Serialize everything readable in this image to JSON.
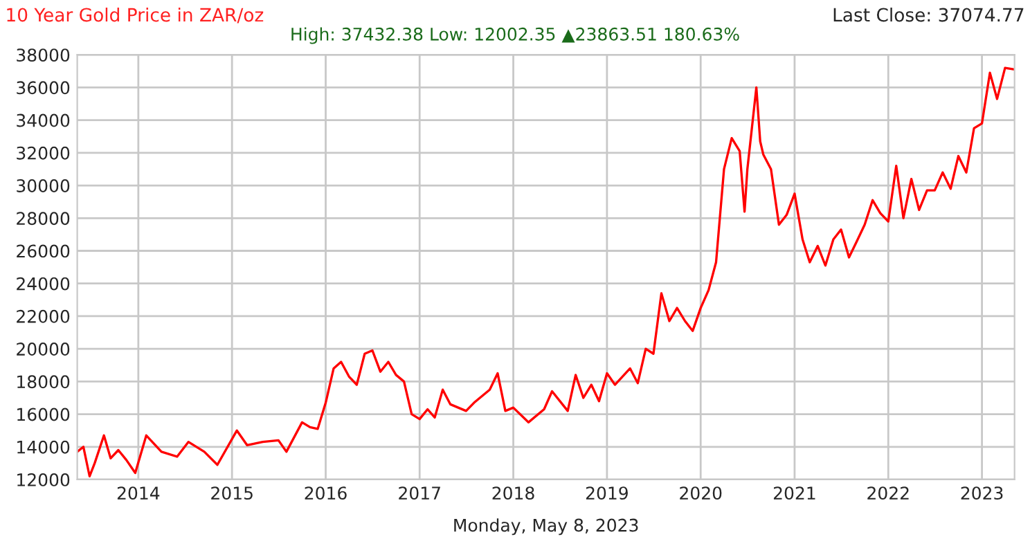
{
  "chart_data": {
    "type": "line",
    "title": "10 Year Gold Price in ZAR/oz",
    "subtitle": "High: 37432.38 Low: 12002.35 ▲23863.51 180.63%",
    "xlabel": "Monday, May 8, 2023",
    "annotations": [
      "Last Close: 37074.77"
    ],
    "x": [
      "2013-05-08",
      "2013-06-01",
      "2013-06-25",
      "2013-07-15",
      "2013-08-20",
      "2013-09-15",
      "2013-10-15",
      "2013-11-15",
      "2013-12-20",
      "2014-02-01",
      "2014-04-01",
      "2014-06-01",
      "2014-07-15",
      "2014-09-15",
      "2014-11-05",
      "2015-01-20",
      "2015-03-01",
      "2015-05-01",
      "2015-07-01",
      "2015-08-01",
      "2015-10-01",
      "2015-11-01",
      "2015-12-01",
      "2016-01-01",
      "2016-02-01",
      "2016-03-01",
      "2016-04-01",
      "2016-05-01",
      "2016-06-01",
      "2016-07-01",
      "2016-08-01",
      "2016-09-01",
      "2016-10-01",
      "2016-11-01",
      "2016-12-01",
      "2017-01-01",
      "2017-02-01",
      "2017-03-01",
      "2017-04-01",
      "2017-05-01",
      "2017-07-01",
      "2017-08-01",
      "2017-10-01",
      "2017-11-01",
      "2017-12-01",
      "2018-01-01",
      "2018-03-01",
      "2018-05-01",
      "2018-06-01",
      "2018-08-01",
      "2018-09-01",
      "2018-10-01",
      "2018-11-01",
      "2018-12-01",
      "2019-01-01",
      "2019-02-01",
      "2019-04-01",
      "2019-05-01",
      "2019-06-01",
      "2019-07-01",
      "2019-08-01",
      "2019-09-01",
      "2019-10-01",
      "2019-11-01",
      "2019-12-01",
      "2020-01-01",
      "2020-02-01",
      "2020-03-01",
      "2020-04-01",
      "2020-05-01",
      "2020-06-01",
      "2020-06-20",
      "2020-07-01",
      "2020-08-05",
      "2020-08-20",
      "2020-09-01",
      "2020-10-01",
      "2020-11-01",
      "2020-12-01",
      "2021-01-01",
      "2021-02-01",
      "2021-03-01",
      "2021-04-01",
      "2021-05-01",
      "2021-06-01",
      "2021-07-01",
      "2021-08-01",
      "2021-09-01",
      "2021-10-01",
      "2021-11-01",
      "2021-12-01",
      "2022-01-01",
      "2022-02-01",
      "2022-03-01",
      "2022-04-01",
      "2022-05-01",
      "2022-06-01",
      "2022-07-01",
      "2022-08-01",
      "2022-09-01",
      "2022-10-01",
      "2022-11-01",
      "2022-12-01",
      "2023-01-01",
      "2023-02-01",
      "2023-03-01",
      "2023-04-01",
      "2023-05-08"
    ],
    "series": [
      {
        "color": "#ff0000",
        "values": [
          13700,
          14000,
          12200,
          13000,
          14700,
          13300,
          13800,
          13200,
          12400,
          14700,
          13700,
          13400,
          14300,
          13700,
          12900,
          15000,
          14100,
          14300,
          14400,
          13700,
          15500,
          15200,
          15100,
          16700,
          18800,
          19200,
          18300,
          17800,
          19700,
          19900,
          18600,
          19200,
          18400,
          18000,
          16000,
          15700,
          16300,
          15800,
          17500,
          16600,
          16200,
          16700,
          17500,
          18500,
          16200,
          16400,
          15500,
          16300,
          17400,
          16200,
          18400,
          17000,
          17800,
          16800,
          18500,
          17800,
          18800,
          17900,
          20000,
          19700,
          23400,
          21700,
          22500,
          21700,
          21100,
          22500,
          23600,
          25300,
          31000,
          32900,
          32100,
          28400,
          31000,
          36000,
          32700,
          31900,
          31000,
          27600,
          28200,
          29500,
          26700,
          25300,
          26300,
          25100,
          26700,
          27300,
          25600,
          26600,
          27600,
          29100,
          28300,
          27800,
          31200,
          28000,
          30400,
          28500,
          29700,
          29700,
          30800,
          29800,
          31800,
          30800,
          33500,
          33800,
          36900,
          35300,
          37200,
          37100
        ]
      }
    ],
    "xlim": [
      "2013-05-08",
      "2023-05-08"
    ],
    "xticks": [
      {
        "value": "2014-01-01",
        "label": "2014"
      },
      {
        "value": "2015-01-01",
        "label": "2015"
      },
      {
        "value": "2016-01-01",
        "label": "2016"
      },
      {
        "value": "2017-01-01",
        "label": "2017"
      },
      {
        "value": "2018-01-01",
        "label": "2018"
      },
      {
        "value": "2019-01-01",
        "label": "2019"
      },
      {
        "value": "2020-01-01",
        "label": "2020"
      },
      {
        "value": "2021-01-01",
        "label": "2021"
      },
      {
        "value": "2022-01-01",
        "label": "2022"
      },
      {
        "value": "2023-01-01",
        "label": "2023"
      }
    ],
    "ylim": [
      12000,
      38000
    ],
    "yticks": [
      12000,
      14000,
      16000,
      18000,
      20000,
      22000,
      24000,
      26000,
      28000,
      30000,
      32000,
      34000,
      36000,
      38000
    ],
    "grid": true,
    "marker": "none",
    "line_style": "solid"
  }
}
